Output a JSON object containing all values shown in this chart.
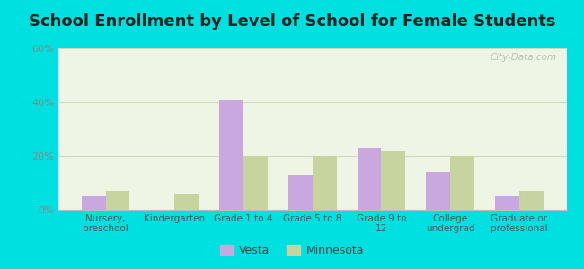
{
  "title": "School Enrollment by Level of School for Female Students",
  "categories": [
    "Nursery,\npreschool",
    "Kindergarten",
    "Grade 1 to 4",
    "Grade 5 to 8",
    "Grade 9 to\n12",
    "College\nundergrad",
    "Graduate or\nprofessional"
  ],
  "vesta_values": [
    5,
    0,
    41,
    13,
    23,
    14,
    5
  ],
  "minnesota_values": [
    7,
    6,
    20,
    20,
    22,
    20,
    7
  ],
  "vesta_color": "#c9a8e0",
  "minnesota_color": "#c8d4a0",
  "background_color": "#00e0e0",
  "plot_bg": "#eef5e4",
  "ylim": [
    0,
    60
  ],
  "yticks": [
    0,
    20,
    40,
    60
  ],
  "ytick_labels": [
    "0%",
    "20%",
    "40%",
    "60%"
  ],
  "tick_color": "#888888",
  "grid_color": "#d0d8c0",
  "title_fontsize": 13,
  "legend_labels": [
    "Vesta",
    "Minnesota"
  ],
  "bar_width": 0.35,
  "watermark": "City-Data.com"
}
